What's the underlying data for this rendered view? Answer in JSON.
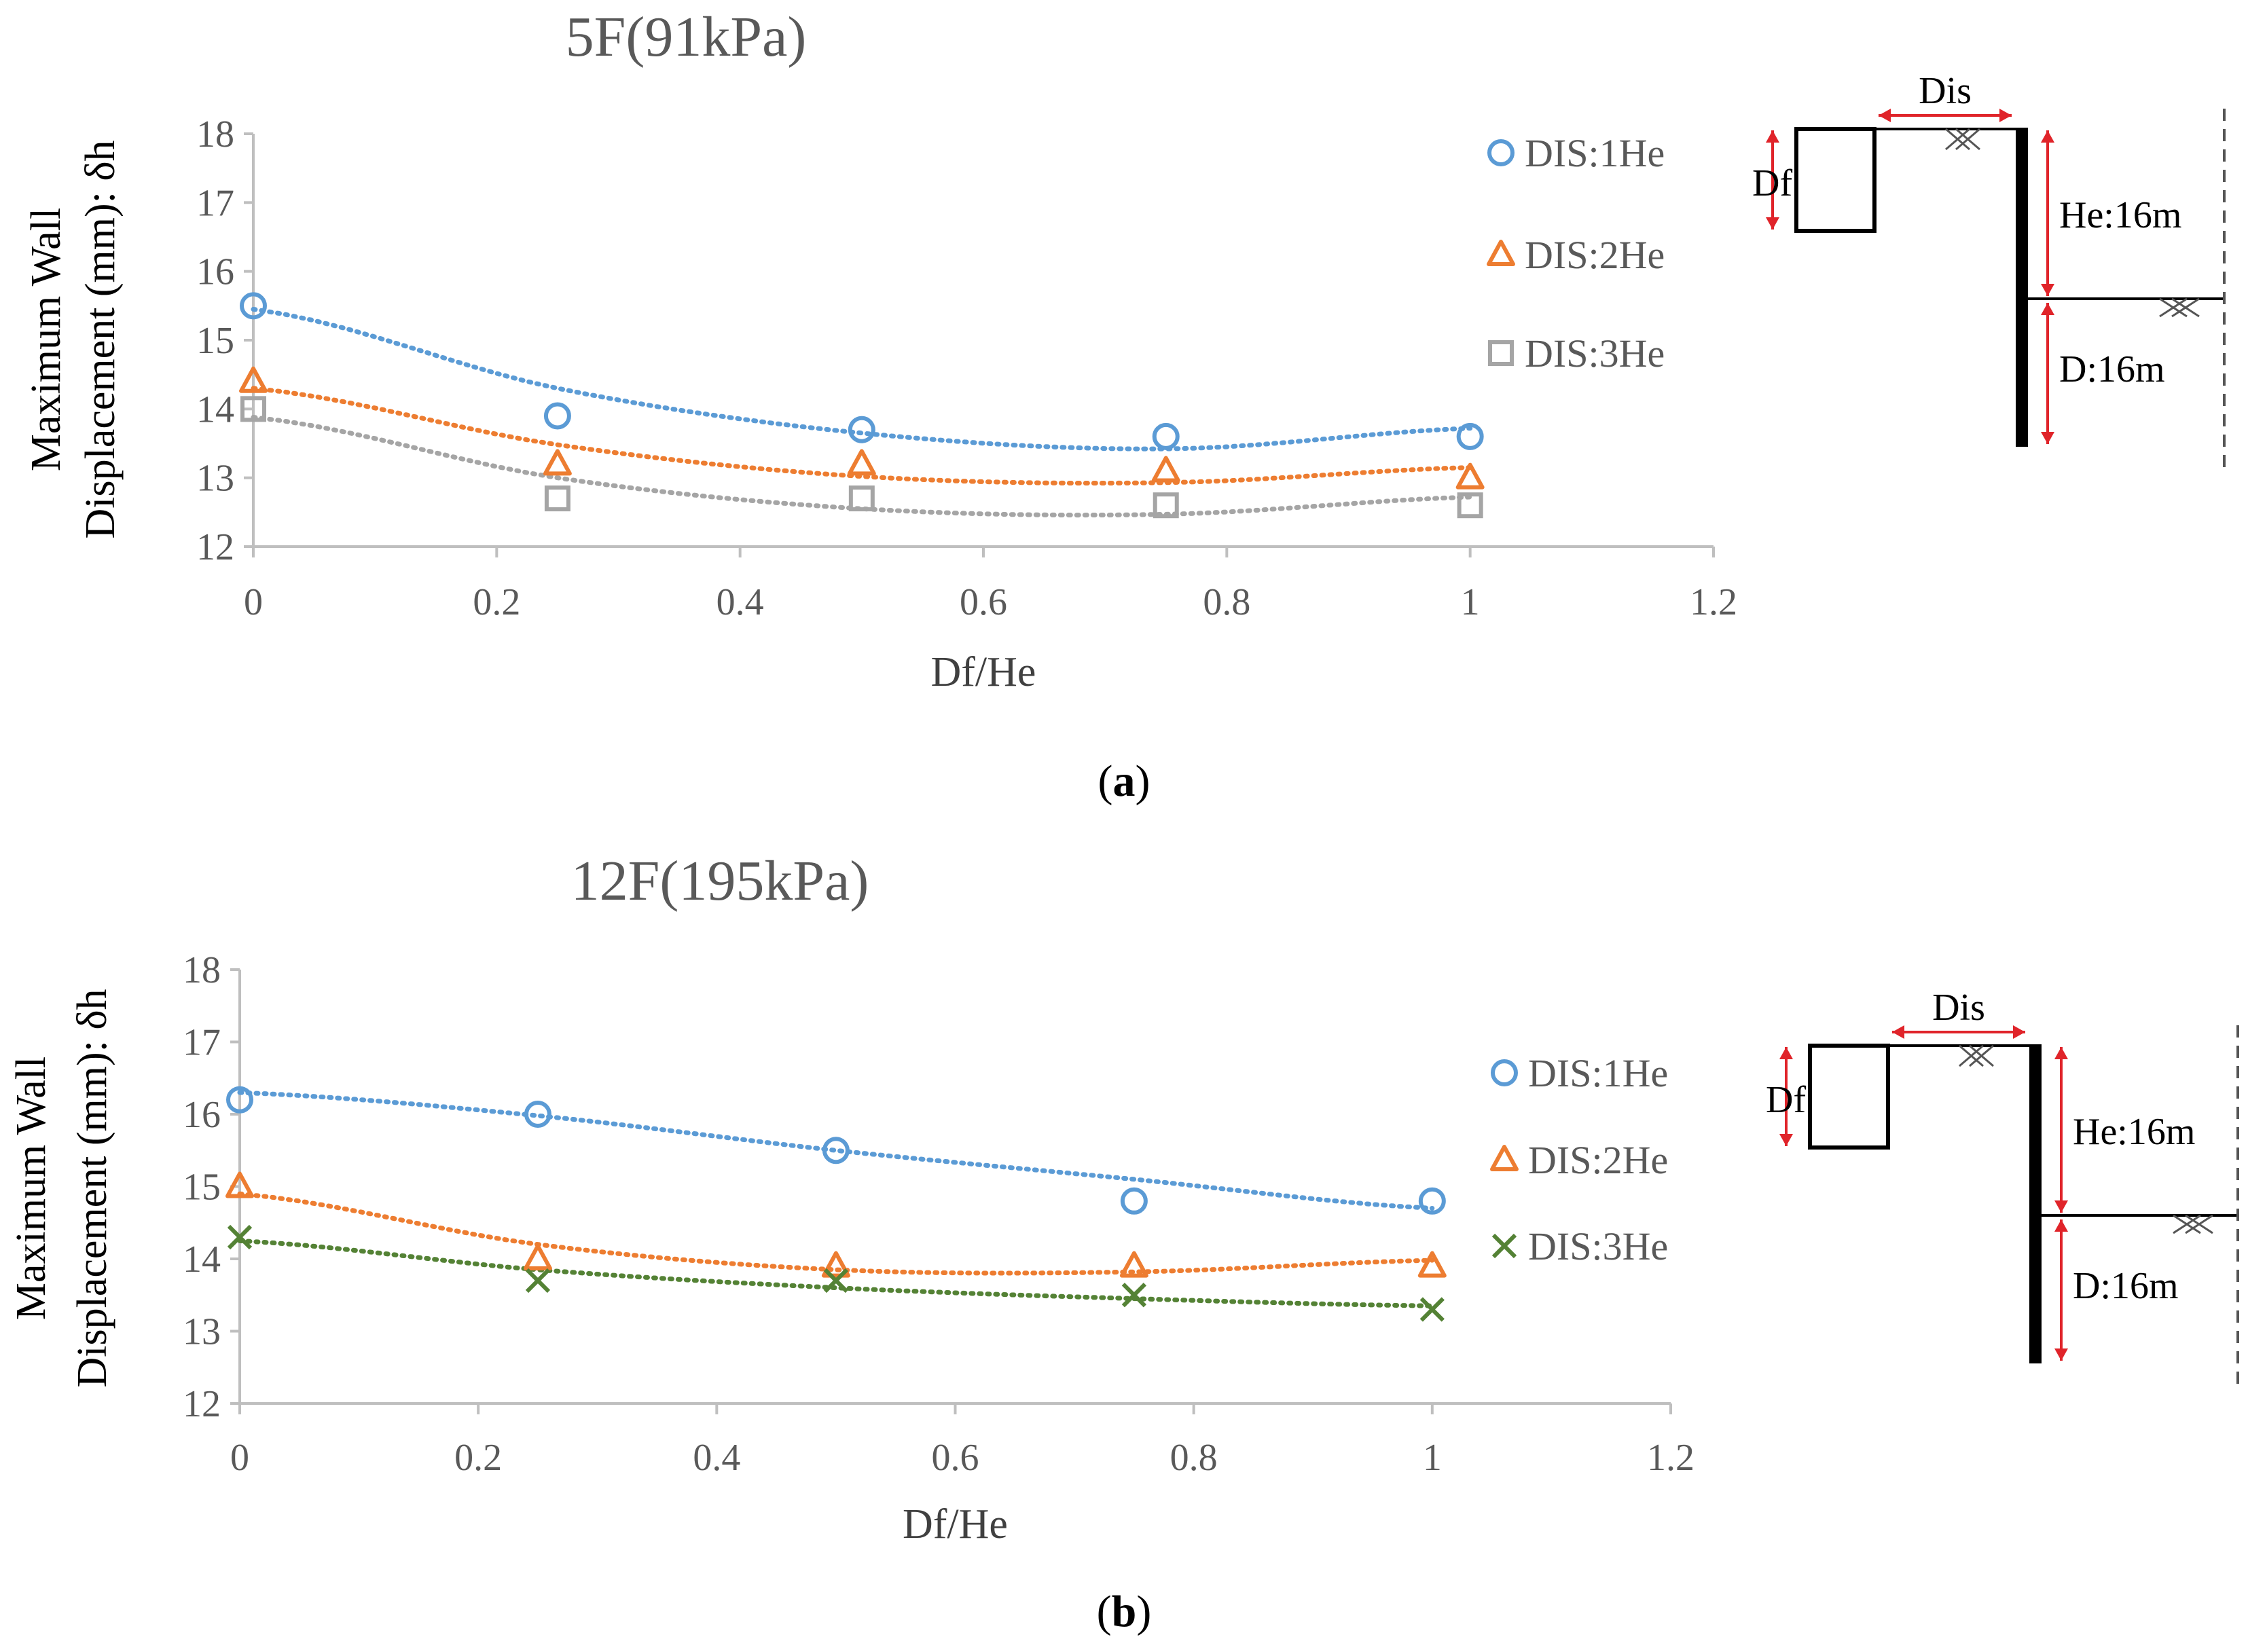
{
  "chart_data": [
    {
      "type": "scatter",
      "title": "5F(91kPa)",
      "xlabel": "Df/He",
      "ylabel_line1": "Maximum Wall",
      "ylabel_line2": "Displacement  (mm): δh",
      "xlim": [
        0,
        1.2
      ],
      "ylim": [
        12,
        18
      ],
      "xticks": [
        "0",
        "0.2",
        "0.4",
        "0.6",
        "0.8",
        "1",
        "1.2"
      ],
      "yticks": [
        "12",
        "13",
        "14",
        "15",
        "16",
        "17",
        "18"
      ],
      "x": [
        0,
        0.25,
        0.5,
        0.75,
        1
      ],
      "series": [
        {
          "name": "DIS:1He",
          "marker": "circle",
          "color": "#5b9bd5",
          "values": [
            15.5,
            13.9,
            13.7,
            13.6,
            13.6
          ],
          "trend": [
            15.45,
            14.3,
            13.65,
            13.42,
            13.72
          ]
        },
        {
          "name": "DIS:2He",
          "marker": "triangle",
          "color": "#ed7d31",
          "values": [
            14.4,
            13.2,
            13.2,
            13.1,
            13.0
          ],
          "trend": [
            14.3,
            13.48,
            13.02,
            12.93,
            13.15
          ]
        },
        {
          "name": "DIS:3He",
          "marker": "square",
          "color": "#a5a5a5",
          "values": [
            14.0,
            12.7,
            12.7,
            12.6,
            12.6
          ],
          "trend": [
            13.88,
            13.0,
            12.55,
            12.47,
            12.72
          ]
        }
      ],
      "caption_label": "a",
      "diagram": {
        "dis": "Dis",
        "df": "Df",
        "he": "He:16m",
        "d": "D:16m"
      }
    },
    {
      "type": "scatter",
      "title": "12F(195kPa)",
      "xlabel": "Df/He",
      "ylabel_line1": "Maximum Wall",
      "ylabel_line2": "Displacement  (mm): δh",
      "xlim": [
        0,
        1.2
      ],
      "ylim": [
        12,
        18
      ],
      "xticks": [
        "0",
        "0.2",
        "0.4",
        "0.6",
        "0.8",
        "1",
        "1.2"
      ],
      "yticks": [
        "12",
        "13",
        "14",
        "15",
        "16",
        "17",
        "18"
      ],
      "x": [
        0,
        0.25,
        0.5,
        0.75,
        1
      ],
      "series": [
        {
          "name": "DIS:1He",
          "marker": "circle",
          "color": "#5b9bd5",
          "values": [
            16.2,
            16.0,
            15.5,
            14.8,
            14.8
          ],
          "trend": [
            16.3,
            15.98,
            15.5,
            15.1,
            14.7
          ]
        },
        {
          "name": "DIS:2He",
          "marker": "triangle",
          "color": "#ed7d31",
          "values": [
            15.0,
            14.0,
            13.9,
            13.9,
            13.9
          ],
          "trend": [
            14.9,
            14.2,
            13.85,
            13.82,
            13.98
          ]
        },
        {
          "name": "DIS:3He",
          "marker": "x",
          "color": "#548235",
          "values": [
            14.3,
            13.7,
            13.7,
            13.5,
            13.3
          ],
          "trend": [
            14.25,
            13.85,
            13.6,
            13.45,
            13.35
          ]
        }
      ],
      "caption_label": "b",
      "diagram": {
        "dis": "Dis",
        "df": "Df",
        "he": "He:16m",
        "d": "D:16m"
      }
    }
  ]
}
